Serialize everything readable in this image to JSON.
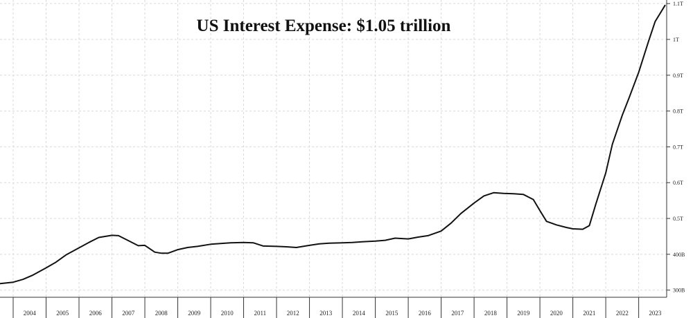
{
  "chart_data": {
    "type": "line",
    "title": "US Interest Expense: $1.05 trillion",
    "xlabel": "",
    "ylabel": "",
    "x_ticks": [
      "2004",
      "2005",
      "2006",
      "2007",
      "2008",
      "2009",
      "2010",
      "2011",
      "2012",
      "2013",
      "2014",
      "2015",
      "2016",
      "2017",
      "2018",
      "2019",
      "2020",
      "2021",
      "2022",
      "2023"
    ],
    "xlim": [
      2003.6,
      2023.85
    ],
    "y_ticks": [
      {
        "value": 300,
        "label": "300B"
      },
      {
        "value": 400,
        "label": "400B"
      },
      {
        "value": 500,
        "label": "0.5T"
      },
      {
        "value": 600,
        "label": "0.6T"
      },
      {
        "value": 700,
        "label": "0.7T"
      },
      {
        "value": 800,
        "label": "0.8T"
      },
      {
        "value": 900,
        "label": "0.9T"
      },
      {
        "value": 1000,
        "label": "1T"
      },
      {
        "value": 1100,
        "label": "1.1T"
      }
    ],
    "ylim": [
      280,
      1110
    ],
    "grid": true,
    "series": [
      {
        "name": "US Interest Expense",
        "x": [
          2003.6,
          2004.0,
          2004.3,
          2004.6,
          2005.0,
          2005.3,
          2005.6,
          2006.0,
          2006.3,
          2006.6,
          2007.0,
          2007.2,
          2007.5,
          2007.8,
          2008.0,
          2008.3,
          2008.5,
          2008.7,
          2009.0,
          2009.3,
          2009.6,
          2010.0,
          2010.3,
          2010.6,
          2011.0,
          2011.3,
          2011.6,
          2012.0,
          2012.3,
          2012.6,
          2013.0,
          2013.3,
          2013.6,
          2014.0,
          2014.3,
          2014.6,
          2015.0,
          2015.3,
          2015.6,
          2016.0,
          2016.3,
          2016.6,
          2017.0,
          2017.3,
          2017.6,
          2018.0,
          2018.3,
          2018.6,
          2018.9,
          2019.2,
          2019.5,
          2019.8,
          2020.0,
          2020.2,
          2020.5,
          2020.8,
          2021.0,
          2021.3,
          2021.5,
          2021.7,
          2022.0,
          2022.2,
          2022.5,
          2022.7,
          2023.0,
          2023.3,
          2023.5,
          2023.8
        ],
        "values": [
          318,
          322,
          330,
          342,
          362,
          378,
          398,
          418,
          433,
          447,
          453,
          452,
          438,
          424,
          425,
          406,
          403,
          403,
          413,
          419,
          422,
          428,
          430,
          432,
          433,
          432,
          423,
          422,
          421,
          419,
          425,
          429,
          431,
          432,
          433,
          435,
          437,
          439,
          445,
          443,
          448,
          452,
          465,
          487,
          514,
          543,
          563,
          572,
          570,
          569,
          567,
          553,
          522,
          492,
          482,
          475,
          471,
          470,
          480,
          541,
          627,
          707,
          788,
          835,
          908,
          995,
          1050,
          1095
        ]
      }
    ]
  }
}
